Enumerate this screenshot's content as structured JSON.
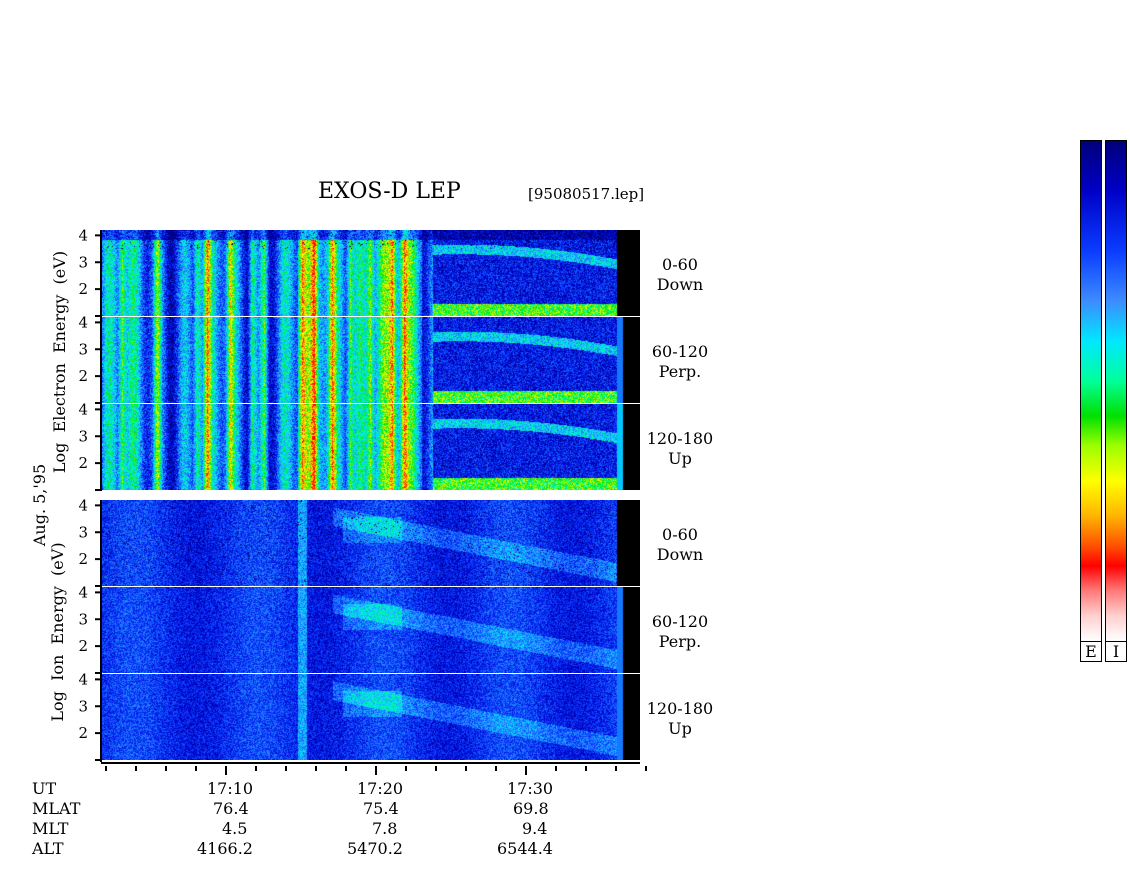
{
  "header": {
    "title": "EXOS-D LEP",
    "file": "[95080517.lep]"
  },
  "date_label": "Aug. 5,'95",
  "electron_axis_label": "Log  Electron  Energy  (eV)",
  "ion_axis_label": "Log  Ion  Energy  (eV)",
  "y_ticks": [
    "4",
    "3",
    "2"
  ],
  "panels": [
    {
      "group": "electron",
      "angle": "0-60",
      "dir": "Down"
    },
    {
      "group": "electron",
      "angle": "60-120",
      "dir": "Perp."
    },
    {
      "group": "electron",
      "angle": "120-180",
      "dir": "Up"
    },
    {
      "group": "ion",
      "angle": "0-60",
      "dir": "Down"
    },
    {
      "group": "ion",
      "angle": "60-120",
      "dir": "Perp."
    },
    {
      "group": "ion",
      "angle": "120-180",
      "dir": "Up"
    }
  ],
  "footer": {
    "row_labels": [
      "UT",
      "MLAT",
      "MLT",
      "ALT"
    ],
    "columns": [
      {
        "UT": "17:10",
        "MLAT": "76.4",
        "MLT": "4.5",
        "ALT": "4166.2"
      },
      {
        "UT": "17:20",
        "MLAT": "75.4",
        "MLT": "7.8",
        "ALT": "5470.2"
      },
      {
        "UT": "17:30",
        "MLAT": "69.8",
        "MLT": "9.4",
        "ALT": "6544.4"
      }
    ]
  },
  "colorbar": {
    "labels": [
      "E",
      "I"
    ]
  },
  "chart_data": {
    "type": "heatmap",
    "title": "EXOS-D LEP",
    "x": [
      "17:10",
      "17:20",
      "17:30"
    ],
    "xlabel": "UT",
    "ylabel": "Log Energy (eV)",
    "ylim": [
      1,
      4.2
    ],
    "series": [
      {
        "name": "Electron 0-60 Down"
      },
      {
        "name": "Electron 60-120 Perp."
      },
      {
        "name": "Electron 120-180 Up"
      },
      {
        "name": "Ion 0-60 Down"
      },
      {
        "name": "Ion 60-120 Perp."
      },
      {
        "name": "Ion 120-180 Up"
      }
    ],
    "colors": {
      "low": "#000080",
      "mid": "#00ff00",
      "high": "#ff0000"
    }
  }
}
